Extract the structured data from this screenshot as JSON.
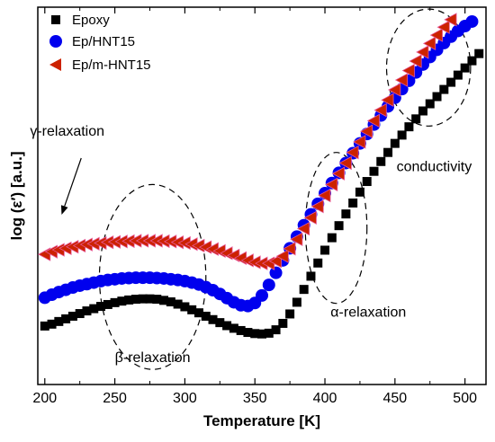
{
  "chart_data": {
    "type": "scatter",
    "xlabel": "Temperature [K]",
    "ylabel": "log (ε′) [a.u.]",
    "xlim": [
      195,
      515
    ],
    "ylim": [
      0.0,
      1.0
    ],
    "xticks": [
      "200",
      "250",
      "300",
      "350",
      "400",
      "450",
      "500"
    ],
    "y_tick_labels_shown": false,
    "legend_position": "top-left",
    "series": [
      {
        "name": "Epoxy",
        "marker": "square",
        "color": "#000000",
        "x": [
          200,
          205,
          210,
          215,
          220,
          225,
          230,
          235,
          240,
          245,
          250,
          255,
          260,
          265,
          270,
          275,
          280,
          285,
          290,
          295,
          300,
          305,
          310,
          315,
          320,
          325,
          330,
          335,
          340,
          345,
          350,
          355,
          360,
          365,
          370,
          375,
          380,
          385,
          390,
          395,
          400,
          405,
          410,
          415,
          420,
          425,
          430,
          435,
          440,
          445,
          450,
          455,
          460,
          465,
          470,
          475,
          480,
          485,
          490,
          495,
          500,
          505,
          510
        ],
        "y": [
          0.155,
          0.16,
          0.167,
          0.174,
          0.181,
          0.188,
          0.195,
          0.201,
          0.207,
          0.212,
          0.217,
          0.221,
          0.224,
          0.226,
          0.227,
          0.227,
          0.226,
          0.223,
          0.219,
          0.213,
          0.206,
          0.198,
          0.19,
          0.181,
          0.172,
          0.164,
          0.156,
          0.149,
          0.143,
          0.138,
          0.135,
          0.134,
          0.136,
          0.145,
          0.162,
          0.187,
          0.218,
          0.252,
          0.287,
          0.322,
          0.356,
          0.389,
          0.421,
          0.452,
          0.481,
          0.51,
          0.538,
          0.565,
          0.591,
          0.615,
          0.639,
          0.661,
          0.683,
          0.704,
          0.725,
          0.744,
          0.763,
          0.782,
          0.801,
          0.82,
          0.839,
          0.858,
          0.877
        ]
      },
      {
        "name": "Ep/HNT15",
        "marker": "circle",
        "color": "#0000ee",
        "x": [
          200,
          205,
          210,
          215,
          220,
          225,
          230,
          235,
          240,
          245,
          250,
          255,
          260,
          265,
          270,
          275,
          280,
          285,
          290,
          295,
          300,
          305,
          310,
          315,
          320,
          325,
          330,
          335,
          340,
          345,
          350,
          355,
          360,
          365,
          370,
          375,
          380,
          385,
          390,
          395,
          400,
          405,
          410,
          415,
          420,
          425,
          430,
          435,
          440,
          445,
          450,
          455,
          460,
          465,
          470,
          475,
          480,
          485,
          490,
          495,
          500,
          505
        ],
        "y": [
          0.23,
          0.238,
          0.245,
          0.251,
          0.257,
          0.262,
          0.266,
          0.27,
          0.274,
          0.277,
          0.279,
          0.281,
          0.282,
          0.283,
          0.283,
          0.283,
          0.282,
          0.281,
          0.279,
          0.277,
          0.274,
          0.27,
          0.265,
          0.258,
          0.25,
          0.24,
          0.229,
          0.218,
          0.21,
          0.208,
          0.216,
          0.236,
          0.264,
          0.296,
          0.329,
          0.361,
          0.392,
          0.422,
          0.451,
          0.479,
          0.507,
          0.534,
          0.561,
          0.587,
          0.613,
          0.639,
          0.664,
          0.689,
          0.713,
          0.737,
          0.76,
          0.783,
          0.805,
          0.827,
          0.848,
          0.868,
          0.887,
          0.905,
          0.922,
          0.937,
          0.95,
          0.962
        ]
      },
      {
        "name": "Ep/m-HNT15",
        "marker": "left-triangle",
        "color": "#cc2200",
        "x": [
          200,
          205,
          210,
          215,
          220,
          225,
          230,
          235,
          240,
          245,
          250,
          255,
          260,
          265,
          270,
          275,
          280,
          285,
          290,
          295,
          300,
          305,
          310,
          315,
          320,
          325,
          330,
          335,
          340,
          345,
          350,
          355,
          360,
          365,
          370,
          375,
          380,
          385,
          390,
          395,
          400,
          405,
          410,
          415,
          420,
          425,
          430,
          435,
          440,
          445,
          450,
          455,
          460,
          465,
          470,
          475,
          480,
          485,
          490
        ],
        "y": [
          0.345,
          0.352,
          0.357,
          0.361,
          0.365,
          0.368,
          0.371,
          0.373,
          0.375,
          0.377,
          0.378,
          0.379,
          0.38,
          0.381,
          0.381,
          0.381,
          0.381,
          0.38,
          0.379,
          0.377,
          0.375,
          0.372,
          0.368,
          0.364,
          0.359,
          0.354,
          0.348,
          0.342,
          0.335,
          0.329,
          0.324,
          0.321,
          0.321,
          0.327,
          0.34,
          0.36,
          0.385,
          0.413,
          0.442,
          0.472,
          0.501,
          0.53,
          0.559,
          0.587,
          0.615,
          0.643,
          0.671,
          0.699,
          0.727,
          0.754,
          0.781,
          0.807,
          0.832,
          0.857,
          0.881,
          0.904,
          0.926,
          0.947,
          0.967
        ]
      }
    ],
    "annotations": [
      {
        "text": "γ-relaxation",
        "x": 216,
        "y": 0.66
      },
      {
        "text": "β-relaxation",
        "x": 277,
        "y": 0.06
      },
      {
        "text": "α-relaxation",
        "x": 431,
        "y": 0.18
      },
      {
        "text": "conductivity",
        "x": 478,
        "y": 0.565
      }
    ],
    "ellipses": [
      {
        "cx": 277,
        "cy": 0.285,
        "rx": 38,
        "ry": 0.245
      },
      {
        "cx": 408,
        "cy": 0.415,
        "rx": 22,
        "ry": 0.2
      },
      {
        "cx": 474,
        "cy": 0.84,
        "rx": 30,
        "ry": 0.155
      }
    ],
    "arrow": {
      "from": [
        226,
        0.6
      ],
      "to": [
        212,
        0.45
      ]
    }
  }
}
